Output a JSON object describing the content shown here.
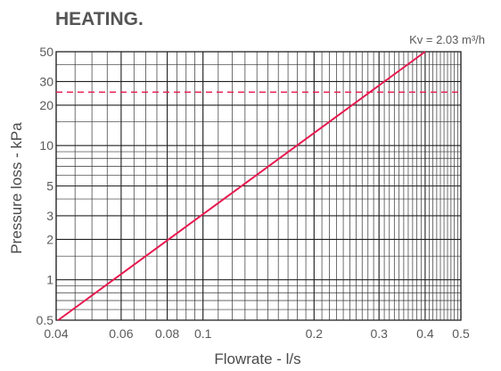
{
  "chart_data": {
    "type": "line",
    "title": "HEATING.",
    "xlabel": "Flowrate - l/s",
    "ylabel": "Pressure loss - kPa",
    "x_scale": "log",
    "y_scale": "log",
    "xlim": [
      0.04,
      0.5
    ],
    "ylim": [
      0.5,
      50
    ],
    "x_ticks": [
      0.04,
      0.06,
      0.08,
      0.1,
      0.2,
      0.3,
      0.4,
      0.5
    ],
    "x_tick_labels": [
      "0.04",
      "0.06",
      "0.08",
      "0.1",
      "0.2",
      "0.3",
      "0.4",
      "0.5"
    ],
    "y_ticks": [
      0.5,
      1,
      2,
      3,
      5,
      10,
      20,
      30,
      50
    ],
    "y_tick_labels": [
      "0.5",
      "1",
      "2",
      "3",
      "5",
      "10",
      "20",
      "30",
      "50"
    ],
    "grid": true,
    "series": [
      {
        "name": "Kv = 2.03 m³/h",
        "x": [
          0.0405,
          0.4
        ],
        "y": [
          0.5,
          50
        ],
        "color": "#e8194f"
      }
    ],
    "reference_lines": [
      {
        "axis": "y",
        "value": 25,
        "style": "dashed",
        "color": "#e8194f"
      }
    ],
    "annotation": "Kv = 2.03 m³/h"
  }
}
